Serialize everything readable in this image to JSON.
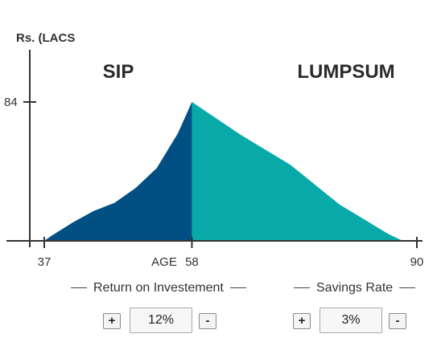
{
  "chart_data": {
    "type": "area",
    "ylabel": "Rs. (LACS",
    "xlabel": "AGE",
    "x_ticks": [
      37,
      58,
      90
    ],
    "y_ticks": [
      84
    ],
    "xlim": [
      35,
      90
    ],
    "ylim": [
      0,
      84
    ],
    "regions": [
      {
        "name": "SIP",
        "color": "#024f83",
        "x": [
          37,
          38,
          41,
          44,
          47,
          50,
          53,
          56,
          58
        ],
        "y": [
          0,
          3,
          11,
          18,
          23,
          32,
          44,
          65,
          84
        ]
      },
      {
        "name": "LUMPSUM",
        "color": "#08a9a9",
        "x": [
          58,
          65,
          72,
          79,
          86,
          88
        ],
        "y": [
          84,
          64,
          46,
          22,
          4,
          0
        ]
      }
    ],
    "grid": false,
    "legend": "none"
  },
  "controls": {
    "return": {
      "label": "Return on Investement",
      "value": "12%",
      "plus": "+",
      "minus": "-"
    },
    "savings": {
      "label": "Savings Rate",
      "value": "3%",
      "plus": "+",
      "minus": "-"
    }
  }
}
